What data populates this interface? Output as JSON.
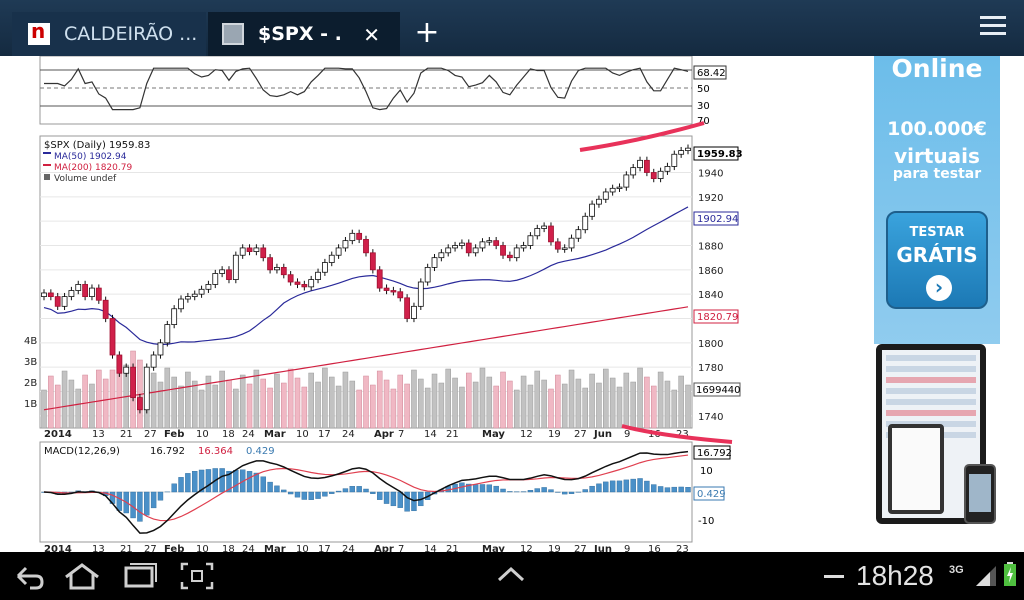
{
  "tabs": [
    {
      "title": "CALDEIRÃO ...",
      "favicon": "news-n-icon"
    },
    {
      "title": "$SPX - .",
      "favicon": "chart-page-icon",
      "active": true
    }
  ],
  "new_tab_label": "+",
  "close_label": "✕",
  "rsi": {
    "value_label": "68.42",
    "levels": [
      "70",
      "50",
      "30"
    ]
  },
  "chart_data": {
    "type": "candlestick",
    "title": "$SPX (Daily) 1959.83",
    "legend": [
      {
        "label": "MA(50) 1902.94",
        "color": "#2a2a9a"
      },
      {
        "label": "MA(200) 1820.79",
        "color": "#d02040"
      },
      {
        "label": "Volume undef",
        "color": "#555555"
      }
    ],
    "price_ticks": [
      "1940",
      "1920",
      "1900",
      "1880",
      "1860",
      "1840",
      "1820",
      "1800",
      "1780",
      "1760",
      "1740"
    ],
    "ylim": [
      1730,
      1970
    ],
    "last_price_label": "1959.83",
    "ma50_label": "1902.94",
    "ma200_label": "1820.79",
    "volume_label": "1699440",
    "volume_ticks": [
      "4B",
      "3B",
      "2B",
      "1B"
    ],
    "x_ticks": [
      "2014",
      "13",
      "21",
      "27",
      "Feb",
      "10",
      "18",
      "24",
      "Mar",
      "10",
      "17",
      "24",
      "Apr",
      "7",
      "14",
      "21",
      "May",
      "12",
      "19",
      "27",
      "Jun",
      "9",
      "16",
      "23"
    ],
    "close_approx": [
      1841,
      1838,
      1830,
      1838,
      1843,
      1848,
      1838,
      1845,
      1835,
      1820,
      1790,
      1775,
      1780,
      1755,
      1745,
      1780,
      1790,
      1800,
      1815,
      1828,
      1836,
      1838,
      1840,
      1844,
      1848,
      1857,
      1860,
      1852,
      1872,
      1878,
      1875,
      1878,
      1870,
      1860,
      1862,
      1856,
      1850,
      1848,
      1846,
      1852,
      1858,
      1866,
      1872,
      1878,
      1884,
      1890,
      1885,
      1874,
      1860,
      1845,
      1843,
      1842,
      1837,
      1820,
      1830,
      1850,
      1862,
      1870,
      1874,
      1878,
      1880,
      1882,
      1874,
      1878,
      1883,
      1884,
      1880,
      1872,
      1870,
      1878,
      1880,
      1888,
      1894,
      1896,
      1883,
      1877,
      1878,
      1886,
      1893,
      1904,
      1914,
      1918,
      1924,
      1927,
      1928,
      1938,
      1944,
      1950,
      1940,
      1935,
      1941,
      1945,
      1955,
      1958,
      1960
    ]
  },
  "macd": {
    "title": "MACD(12,26,9) 16.792, 16.364, 0.429",
    "label_main": "MACD(12,26,9)",
    "value_macd": "16.792",
    "value_signal": "16.364",
    "value_hist": "0.429",
    "ticks": [
      "10",
      "-10"
    ],
    "right_labels": [
      "16.792",
      "0.429"
    ]
  },
  "ad": {
    "headline": "Online",
    "amount": "100.000€",
    "line2": "virtuais",
    "line3": "para testar",
    "button_l1": "TESTAR",
    "button_l2": "GRÁTIS",
    "colors": {
      "bg": "#6cbdea",
      "button": "#2a8fcc"
    }
  },
  "status": {
    "clock": "18h28",
    "network": "3G"
  },
  "colors": {
    "tabbar": "#1f3a55",
    "up_candle": "#ffffff",
    "down_candle": "#d0204a",
    "ma50": "#2a2a9a",
    "ma200": "#d02040",
    "macd_hist": "#4a90c8",
    "annotation": "#e8325a"
  }
}
